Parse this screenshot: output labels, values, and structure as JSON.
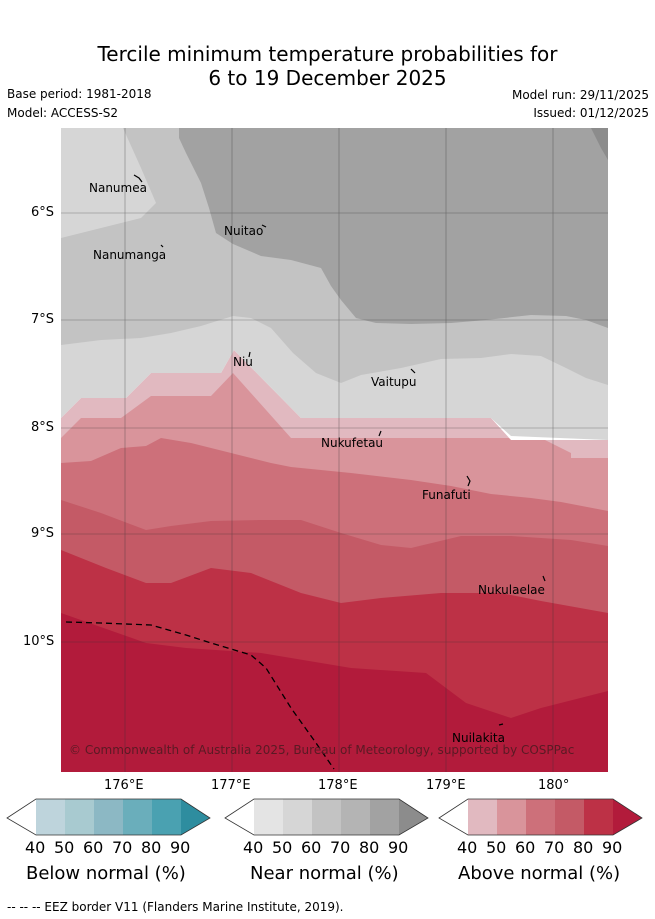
{
  "title": {
    "line1": "Tercile minimum temperature probabilities for",
    "line2": "6 to 19 December 2025"
  },
  "meta": {
    "base_period": "Base period: 1981-2018",
    "model": "Model: ACCESS-S2",
    "model_run": "Model run: 29/11/2025",
    "issued": "Issued: 01/12/2025"
  },
  "map": {
    "x_ticks": [
      "176°E",
      "177°E",
      "178°E",
      "179°E",
      "180°"
    ],
    "y_ticks": [
      "6°S",
      "7°S",
      "8°S",
      "9°S",
      "10°S"
    ],
    "places": [
      "Nanumea",
      "Nuitao",
      "Nanumanga",
      "Niu",
      "Vaitupu",
      "Nukufetau",
      "Funafuti",
      "Nukulaelae",
      "Nuilakita"
    ],
    "credit": "© Commonwealth of Australia 2025, Bureau of Meteorology, supported by COSPPac"
  },
  "colorbars": {
    "tick_labels": [
      "40",
      "50",
      "60",
      "70",
      "80",
      "90"
    ],
    "below": {
      "title": "Below normal (%)",
      "colors": [
        "#ffffff",
        "#bed4dc",
        "#a8cad0",
        "#8cb8c4",
        "#6aaebb",
        "#4aa1b1",
        "#2e8d9f"
      ]
    },
    "near": {
      "title": "Near normal (%)",
      "colors": [
        "#ffffff",
        "#e4e4e4",
        "#d6d6d6",
        "#c3c3c3",
        "#b4b4b4",
        "#a2a2a2",
        "#8c8c8c"
      ]
    },
    "above": {
      "title": "Above normal (%)",
      "colors": [
        "#ffffff",
        "#e1b9c0",
        "#d9949b",
        "#cd707a",
        "#c45a66",
        "#bd3146",
        "#b21b3b"
      ]
    }
  },
  "footnote": "-- -- -- EEZ border V11 (Flanders Marine Institute, 2019)."
}
